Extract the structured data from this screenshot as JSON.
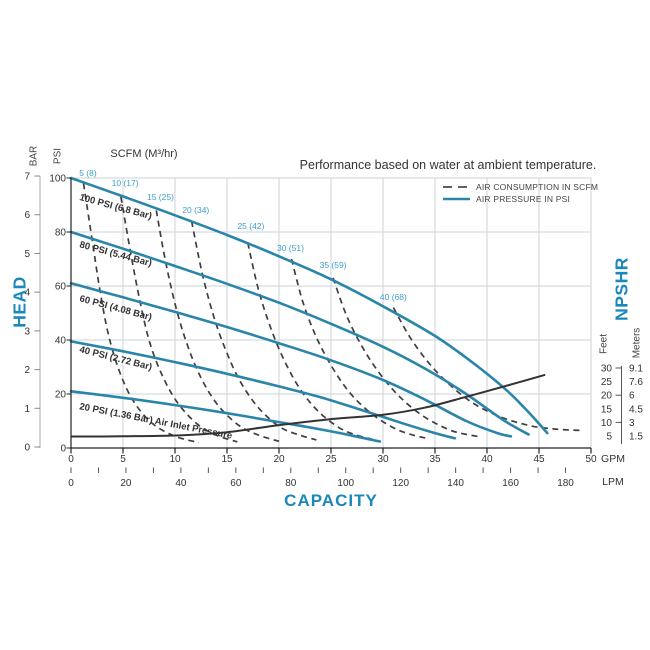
{
  "chart_data": {
    "type": "line",
    "title": "Performance based on water at ambient temperature.",
    "scfm_header": "SCFM (M³/hr)",
    "axes": {
      "x": {
        "title": "CAPACITY",
        "gpm_ticks": [
          0,
          5,
          10,
          15,
          20,
          25,
          30,
          35,
          40,
          45,
          50
        ],
        "gpm_unit": "GPM",
        "lpm_tick_labels": [
          0,
          20,
          40,
          60,
          80,
          100,
          120,
          140,
          160,
          180
        ],
        "lpm_minor_step": 10,
        "lpm_max": 180,
        "lpm_unit": "LPM",
        "gpm_range": [
          0,
          50
        ]
      },
      "y": {
        "title": "HEAD",
        "psi_label": "PSI",
        "psi_ticks": [
          0,
          20,
          40,
          60,
          80,
          100
        ],
        "bar_label": "BAR",
        "bar_ticks": [
          0,
          1,
          2,
          3,
          4,
          5,
          6,
          7
        ],
        "psi_range": [
          0,
          100
        ]
      },
      "right": {
        "title": "NPSHR",
        "feet_label": "Feet",
        "meters_label": "Meters",
        "feet": [
          30,
          25,
          20,
          15,
          10,
          5
        ],
        "meters": [
          "9.1",
          "7.6",
          "6",
          "4.5",
          "3",
          "1.5"
        ]
      }
    },
    "legend": [
      {
        "label": "AIR CONSUMPTION IN SCFM",
        "style": "dashed"
      },
      {
        "label": "AIR PRESSURE IN PSI",
        "style": "solid"
      }
    ],
    "pressure_curves": [
      {
        "label": "100 PSI (6.8 Bar)",
        "label_at": [
          0.77,
          91.9
        ],
        "label_rot": 15,
        "points": [
          [
            0,
            100
          ],
          [
            5,
            93.2
          ],
          [
            10,
            86.2
          ],
          [
            15,
            78.9
          ],
          [
            20,
            71
          ],
          [
            25,
            62.5
          ],
          [
            30,
            52.5
          ],
          [
            35,
            41.5
          ],
          [
            39,
            30.5
          ],
          [
            42,
            21
          ],
          [
            44.3,
            12
          ],
          [
            45.8,
            5.5
          ]
        ]
      },
      {
        "label": "80 PSI (5.44 Bar)",
        "label_at": [
          0.77,
          74.4
        ],
        "label_rot": 15,
        "points": [
          [
            0,
            80
          ],
          [
            5,
            73.8
          ],
          [
            10,
            67.4
          ],
          [
            15,
            60.8
          ],
          [
            20,
            53.8
          ],
          [
            25,
            46
          ],
          [
            30,
            37.5
          ],
          [
            34,
            29.5
          ],
          [
            38,
            20
          ],
          [
            41.5,
            10.5
          ],
          [
            44,
            5
          ]
        ]
      },
      {
        "label": "60 PSI (4.08 Bar)",
        "label_at": [
          0.77,
          54.4
        ],
        "label_rot": 15,
        "points": [
          [
            0,
            61
          ],
          [
            5,
            55.8
          ],
          [
            10,
            50.4
          ],
          [
            15,
            44.8
          ],
          [
            20,
            38.8
          ],
          [
            25,
            32.5
          ],
          [
            30,
            25.2
          ],
          [
            34,
            18
          ],
          [
            38,
            10
          ],
          [
            41,
            5.5
          ],
          [
            42.3,
            4.3
          ]
        ]
      },
      {
        "label": "40 PSI (2.72 Bar)",
        "label_at": [
          0.77,
          35.5
        ],
        "label_rot": 14,
        "points": [
          [
            0,
            39.5
          ],
          [
            5,
            35.8
          ],
          [
            10,
            31.8
          ],
          [
            15,
            27.5
          ],
          [
            20,
            22.8
          ],
          [
            24,
            18.8
          ],
          [
            28,
            14
          ],
          [
            32,
            9
          ],
          [
            35,
            5.5
          ],
          [
            36.9,
            3.6
          ]
        ]
      },
      {
        "label": "20 PSI (1.36 Bar) Air Inlet Pressure",
        "label_at": [
          0.77,
          14.4
        ],
        "label_rot": 11,
        "points": [
          [
            0,
            21
          ],
          [
            5,
            18.6
          ],
          [
            10,
            15.9
          ],
          [
            15,
            12.9
          ],
          [
            20,
            9.6
          ],
          [
            23,
            7.6
          ],
          [
            26,
            5.4
          ],
          [
            29.7,
            2.4
          ]
        ]
      }
    ],
    "consumption_curves": [
      {
        "label": "5 (8)",
        "label_at": [
          1.63,
          100.7
        ],
        "points": [
          [
            1.2,
            98
          ],
          [
            2.0,
            78
          ],
          [
            2.8,
            58
          ],
          [
            3.6,
            42
          ],
          [
            4.6,
            29
          ],
          [
            5.9,
            18
          ],
          [
            7.7,
            9.5
          ],
          [
            9.9,
            4.5
          ],
          [
            12.3,
            2
          ]
        ]
      },
      {
        "label": "10 (17)",
        "label_at": [
          5.2,
          97.0
        ],
        "points": [
          [
            4.8,
            93
          ],
          [
            5.7,
            73
          ],
          [
            6.6,
            55
          ],
          [
            7.5,
            40
          ],
          [
            8.7,
            27.5
          ],
          [
            10.2,
            17
          ],
          [
            12.1,
            9
          ],
          [
            14,
            4.7
          ],
          [
            16,
            2.3
          ]
        ]
      },
      {
        "label": "15 (25)",
        "label_at": [
          8.6,
          91.9
        ],
        "points": [
          [
            8.2,
            88
          ],
          [
            9.1,
            69
          ],
          [
            10.1,
            52
          ],
          [
            11.2,
            38
          ],
          [
            12.5,
            26
          ],
          [
            14.1,
            16
          ],
          [
            16.1,
            8.5
          ],
          [
            18,
            4.8
          ],
          [
            20,
            2.5
          ]
        ]
      },
      {
        "label": "20 (34)",
        "label_at": [
          12.0,
          87.0
        ],
        "points": [
          [
            11.6,
            84
          ],
          [
            12.6,
            65
          ],
          [
            13.7,
            49
          ],
          [
            14.9,
            36
          ],
          [
            16.3,
            24.5
          ],
          [
            18,
            15
          ],
          [
            20,
            8
          ],
          [
            21.8,
            5
          ],
          [
            23.6,
            3
          ]
        ]
      },
      {
        "label": "25 (42)",
        "label_at": [
          17.3,
          81.1
        ],
        "points": [
          [
            17,
            76
          ],
          [
            18,
            59
          ],
          [
            19.2,
            44.5
          ],
          [
            20.5,
            32.5
          ],
          [
            22,
            22
          ],
          [
            23.8,
            13.5
          ],
          [
            25.8,
            7.5
          ],
          [
            27.4,
            4.8
          ],
          [
            28.9,
            3.3
          ]
        ]
      },
      {
        "label": "30 (51)",
        "label_at": [
          21.1,
          72.9
        ],
        "points": [
          [
            21.2,
            70
          ],
          [
            22.3,
            54
          ],
          [
            23.6,
            41
          ],
          [
            25.1,
            30
          ],
          [
            26.8,
            20.5
          ],
          [
            28.8,
            13
          ],
          [
            31,
            7.5
          ],
          [
            32.7,
            5
          ],
          [
            34.2,
            3.6
          ]
        ]
      },
      {
        "label": "35 (59)",
        "label_at": [
          25.2,
          66.7
        ],
        "points": [
          [
            25.2,
            63
          ],
          [
            26.5,
            49
          ],
          [
            28,
            37.5
          ],
          [
            29.7,
            27.5
          ],
          [
            31.6,
            19
          ],
          [
            33.8,
            12
          ],
          [
            36.2,
            7
          ],
          [
            37.8,
            5.2
          ],
          [
            39.3,
            4.2
          ]
        ]
      },
      {
        "label": "40 (68)",
        "label_at": [
          31.0,
          54.8
        ],
        "points": [
          [
            31,
            52
          ],
          [
            32.6,
            41
          ],
          [
            34.4,
            31.5
          ],
          [
            36.4,
            23.5
          ],
          [
            38.7,
            16.5
          ],
          [
            41.3,
            11.5
          ],
          [
            44.2,
            8.2
          ],
          [
            46.6,
            7
          ],
          [
            49,
            6.5
          ]
        ]
      }
    ],
    "npshr_curve": {
      "points_gpm_feet": [
        [
          0,
          4.8
        ],
        [
          5,
          4.9
        ],
        [
          10,
          5.2
        ],
        [
          15,
          6.4
        ],
        [
          20,
          9.0
        ],
        [
          25,
          11.2
        ],
        [
          30,
          12.8
        ],
        [
          34,
          15.4
        ],
        [
          38,
          19.4
        ],
        [
          42,
          23.6
        ],
        [
          45.6,
          27.5
        ]
      ]
    },
    "colors": {
      "pressure": "#2a85aa",
      "consumption": "#3f3f3f",
      "npshr": "#333333",
      "teal_text": "#1b87ba",
      "scfm_label": "#3d9ec7",
      "grid": "#cdd3d7",
      "axis": "#222222"
    }
  }
}
